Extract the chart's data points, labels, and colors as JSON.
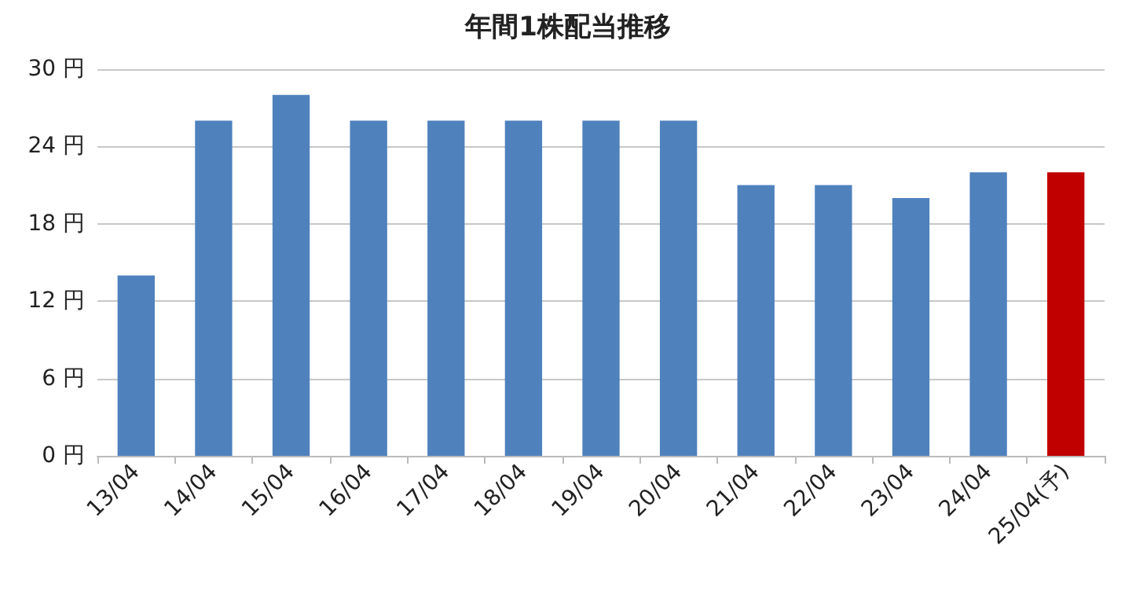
{
  "chart_data": {
    "type": "bar",
    "title": "年間1株配当推移",
    "categories": [
      "13/04",
      "14/04",
      "15/04",
      "16/04",
      "17/04",
      "18/04",
      "19/04",
      "20/04",
      "21/04",
      "22/04",
      "23/04",
      "24/04",
      "25/04(予)"
    ],
    "values": [
      14,
      26,
      28,
      26,
      26,
      26,
      26,
      26,
      21,
      21,
      20,
      22,
      22
    ],
    "colors": [
      "#4f81bd",
      "#4f81bd",
      "#4f81bd",
      "#4f81bd",
      "#4f81bd",
      "#4f81bd",
      "#4f81bd",
      "#4f81bd",
      "#4f81bd",
      "#4f81bd",
      "#4f81bd",
      "#4f81bd",
      "#c00000"
    ],
    "ylim": [
      0,
      30
    ],
    "yticks": [
      {
        "value": 0,
        "label": "0 円"
      },
      {
        "value": 6,
        "label": "6 円"
      },
      {
        "value": 12,
        "label": "12 円"
      },
      {
        "value": 18,
        "label": "18 円"
      },
      {
        "value": 24,
        "label": "24 円"
      },
      {
        "value": 30,
        "label": "30 円"
      }
    ],
    "grid": "y"
  }
}
